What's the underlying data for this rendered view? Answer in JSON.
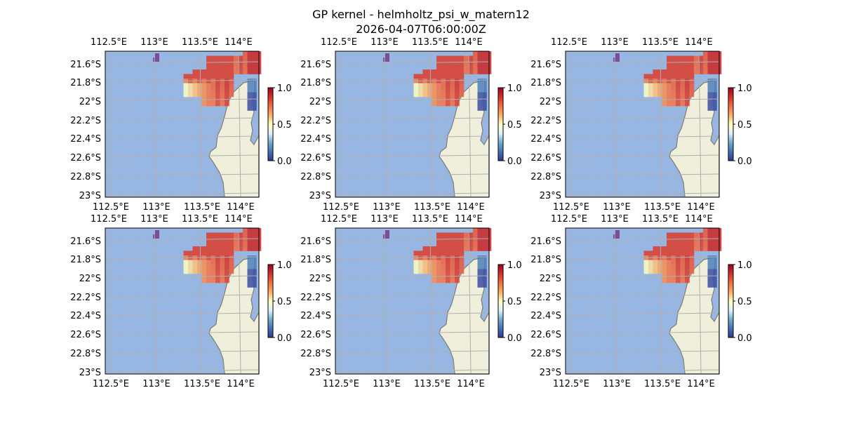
{
  "figure": {
    "title_line1": "GP kernel - helmholtz_psi_w_matern12",
    "title_line2": "2026-04-07T06:00:00Z"
  },
  "axes": {
    "lon_ticks": [
      "112.5°E",
      "113°E",
      "113.5°E",
      "114°E"
    ],
    "lat_ticks": [
      "21.6°S",
      "21.8°S",
      "22°S",
      "22.2°S",
      "22.4°S",
      "22.6°S",
      "22.8°S",
      "23°S"
    ],
    "lon_range": [
      112.45,
      114.2
    ],
    "lat_range": [
      -23.0,
      -21.45
    ]
  },
  "colorbar": {
    "ticks": [
      "0.0",
      "0.5",
      "1.0"
    ],
    "range": [
      0,
      1
    ],
    "colormap": [
      "#313695",
      "#4575b4",
      "#74add1",
      "#e0f3f8",
      "#ffffbf",
      "#fdae61",
      "#f46d43",
      "#d73027",
      "#a50026"
    ]
  },
  "colors": {
    "ocean": "#97b6e1",
    "land": "#efefdb",
    "coastline": "#808080",
    "gridline": "#b0b0b0"
  },
  "panels": [
    {
      "id": "r1c1"
    },
    {
      "id": "r1c2"
    },
    {
      "id": "r1c3"
    },
    {
      "id": "r2c1"
    },
    {
      "id": "r2c2"
    },
    {
      "id": "r2c3"
    }
  ]
}
